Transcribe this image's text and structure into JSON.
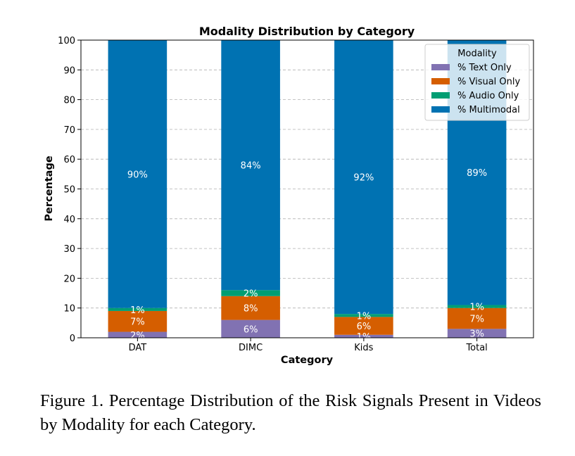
{
  "chart_data": {
    "type": "bar",
    "stacked": true,
    "title": "Modality Distribution by Category",
    "xlabel": "Category",
    "ylabel": "Percentage",
    "ylim": [
      0,
      100
    ],
    "yticks": [
      0,
      10,
      20,
      30,
      40,
      50,
      60,
      70,
      80,
      90,
      100
    ],
    "grid": "horizontal dashed",
    "categories": [
      "DAT",
      "DIMC",
      "Kids",
      "Total"
    ],
    "series": [
      {
        "name": "% Text Only",
        "color": "#8172b2",
        "values": [
          2,
          6,
          1,
          3
        ],
        "labels": [
          "2%",
          "6%",
          "1%",
          "3%"
        ]
      },
      {
        "name": "% Visual Only",
        "color": "#d55e00",
        "values": [
          7,
          8,
          6,
          7
        ],
        "labels": [
          "7%",
          "8%",
          "6%",
          "7%"
        ]
      },
      {
        "name": "% Audio Only",
        "color": "#009e73",
        "values": [
          1,
          2,
          1,
          1
        ],
        "labels": [
          "1%",
          "2%",
          "1%",
          "1%"
        ]
      },
      {
        "name": "% Multimodal",
        "color": "#0072b2",
        "values": [
          90,
          84,
          92,
          89
        ],
        "labels": [
          "90%",
          "84%",
          "92%",
          "89%"
        ]
      }
    ],
    "legend": {
      "title": "Modality",
      "placement": "top-right"
    }
  },
  "caption": "Figure 1. Percentage Distribution of the Risk Signals Present in Videos by Modality for each Category."
}
